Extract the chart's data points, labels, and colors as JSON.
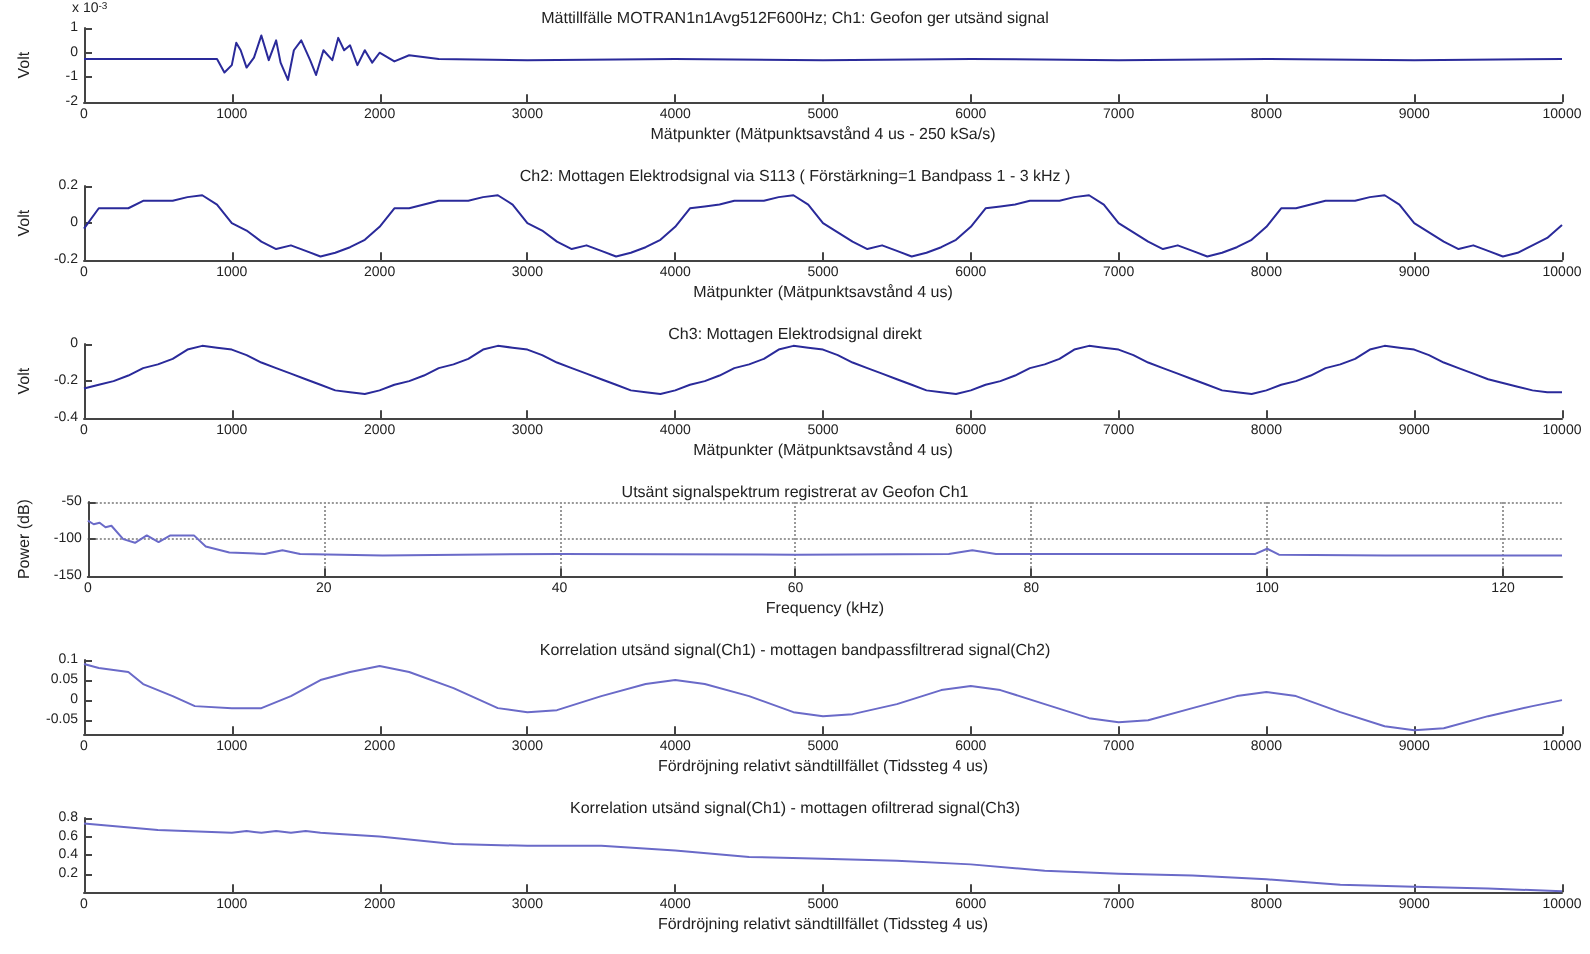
{
  "chart_data": [
    {
      "type": "line",
      "title": "Mättillfälle MOTRAN1n1Avg512F600Hz; Ch1: Geofon ger utsänd signal",
      "xlabel": "Mätpunkter (Mätpunktsavstånd 4 us - 250 kSa/s)",
      "ylabel": "Volt",
      "annotations": [
        "x 10$^{-3}$"
      ],
      "xlim": [
        0,
        10000
      ],
      "xticks": [
        0,
        1000,
        2000,
        3000,
        4000,
        5000,
        6000,
        7000,
        8000,
        9000,
        10000
      ],
      "ylim": [
        -2,
        1
      ],
      "yticks": [
        -2,
        -1,
        0,
        1
      ],
      "grid": false,
      "x": [
        0,
        500,
        900,
        950,
        1000,
        1030,
        1060,
        1100,
        1150,
        1200,
        1250,
        1300,
        1330,
        1380,
        1420,
        1470,
        1530,
        1570,
        1620,
        1680,
        1720,
        1760,
        1800,
        1850,
        1900,
        1950,
        2000,
        2100,
        2200,
        2400,
        3000,
        4000,
        5000,
        6000,
        7000,
        8000,
        9000,
        10000
      ],
      "series": [
        {
          "color": "#2a2a9a",
          "values": [
            -0.25,
            -0.25,
            -0.25,
            -0.8,
            -0.5,
            0.4,
            0.1,
            -0.6,
            -0.2,
            0.7,
            -0.3,
            0.5,
            -0.4,
            -1.1,
            0.1,
            0.5,
            -0.3,
            -0.9,
            0.1,
            -0.3,
            0.6,
            0.1,
            0.3,
            -0.5,
            0.1,
            -0.4,
            0,
            -0.35,
            -0.1,
            -0.25,
            -0.3,
            -0.25,
            -0.3,
            -0.25,
            -0.3,
            -0.25,
            -0.3,
            -0.25
          ]
        }
      ]
    },
    {
      "type": "line",
      "title": "Ch2: Mottagen Elektrodsignal via S113 ( Förstärkning=1 Bandpass 1 - 3 kHz )",
      "xlabel": "Mätpunkter (Mätpunktsavstånd 4 us)",
      "ylabel": "Volt",
      "xlim": [
        0,
        10000
      ],
      "xticks": [
        0,
        1000,
        2000,
        3000,
        4000,
        5000,
        6000,
        7000,
        8000,
        9000,
        10000
      ],
      "ylim": [
        -0.2,
        0.2
      ],
      "yticks": [
        -0.2,
        0,
        0.2
      ],
      "grid": false,
      "x": [
        0,
        100,
        200,
        300,
        400,
        500,
        600,
        700,
        800,
        900,
        1000,
        1100,
        1200,
        1300,
        1400,
        1500,
        1600,
        1700,
        1800,
        1900,
        2000,
        2100,
        2200,
        2300,
        2400,
        2500,
        2600,
        2700,
        2800,
        2900,
        3000,
        3100,
        3200,
        3300,
        3400,
        3500,
        3600,
        3700,
        3800,
        3900,
        4000,
        4100,
        4200,
        4300,
        4400,
        4500,
        4600,
        4700,
        4800,
        4900,
        5000,
        5100,
        5200,
        5300,
        5400,
        5500,
        5600,
        5700,
        5800,
        5900,
        6000,
        6100,
        6200,
        6300,
        6400,
        6500,
        6600,
        6700,
        6800,
        6900,
        7000,
        7100,
        7200,
        7300,
        7400,
        7500,
        7600,
        7700,
        7800,
        7900,
        8000,
        8100,
        8200,
        8300,
        8400,
        8500,
        8600,
        8700,
        8800,
        8900,
        9000,
        9100,
        9200,
        9300,
        9400,
        9500,
        9600,
        9700,
        9800,
        9900,
        10000
      ],
      "series": [
        {
          "color": "#2a2a9a",
          "values": [
            -0.03,
            0.08,
            0.08,
            0.08,
            0.12,
            0.12,
            0.12,
            0.14,
            0.15,
            0.1,
            0.0,
            -0.04,
            -0.1,
            -0.14,
            -0.12,
            -0.15,
            -0.18,
            -0.16,
            -0.13,
            -0.09,
            -0.02,
            0.08,
            0.08,
            0.1,
            0.12,
            0.12,
            0.12,
            0.14,
            0.15,
            0.1,
            0.0,
            -0.04,
            -0.1,
            -0.14,
            -0.12,
            -0.15,
            -0.18,
            -0.16,
            -0.13,
            -0.09,
            -0.02,
            0.08,
            0.09,
            0.1,
            0.12,
            0.12,
            0.12,
            0.14,
            0.15,
            0.1,
            0.0,
            -0.05,
            -0.1,
            -0.14,
            -0.12,
            -0.15,
            -0.18,
            -0.16,
            -0.13,
            -0.09,
            -0.02,
            0.08,
            0.09,
            0.1,
            0.12,
            0.12,
            0.12,
            0.14,
            0.15,
            0.1,
            0.0,
            -0.05,
            -0.1,
            -0.14,
            -0.12,
            -0.15,
            -0.18,
            -0.16,
            -0.13,
            -0.09,
            -0.02,
            0.08,
            0.08,
            0.1,
            0.12,
            0.12,
            0.12,
            0.14,
            0.15,
            0.1,
            0.0,
            -0.05,
            -0.1,
            -0.14,
            -0.12,
            -0.15,
            -0.18,
            -0.16,
            -0.12,
            -0.08,
            -0.01
          ]
        }
      ]
    },
    {
      "type": "line",
      "title": "Ch3: Mottagen Elektrodsignal direkt",
      "xlabel": "Mätpunkter (Mätpunktsavstånd 4 us)",
      "ylabel": "Volt",
      "xlim": [
        0,
        10000
      ],
      "xticks": [
        0,
        1000,
        2000,
        3000,
        4000,
        5000,
        6000,
        7000,
        8000,
        9000,
        10000
      ],
      "ylim": [
        -0.4,
        0
      ],
      "yticks": [
        -0.4,
        -0.2,
        0
      ],
      "grid": false,
      "x": [
        0,
        100,
        200,
        300,
        400,
        500,
        600,
        700,
        800,
        900,
        1000,
        1100,
        1200,
        1300,
        1400,
        1500,
        1600,
        1700,
        1800,
        1900,
        2000,
        2100,
        2200,
        2300,
        2400,
        2500,
        2600,
        2700,
        2800,
        2900,
        3000,
        3100,
        3200,
        3300,
        3400,
        3500,
        3600,
        3700,
        3800,
        3900,
        4000,
        4100,
        4200,
        4300,
        4400,
        4500,
        4600,
        4700,
        4800,
        4900,
        5000,
        5100,
        5200,
        5300,
        5400,
        5500,
        5600,
        5700,
        5800,
        5900,
        6000,
        6100,
        6200,
        6300,
        6400,
        6500,
        6600,
        6700,
        6800,
        6900,
        7000,
        7100,
        7200,
        7300,
        7400,
        7500,
        7600,
        7700,
        7800,
        7900,
        8000,
        8100,
        8200,
        8300,
        8400,
        8500,
        8600,
        8700,
        8800,
        8900,
        9000,
        9100,
        9200,
        9300,
        9400,
        9500,
        9600,
        9700,
        9800,
        9900,
        10000
      ],
      "series": [
        {
          "color": "#2a2a9a",
          "values": [
            -0.24,
            -0.22,
            -0.2,
            -0.17,
            -0.13,
            -0.11,
            -0.08,
            -0.03,
            -0.01,
            -0.02,
            -0.03,
            -0.06,
            -0.1,
            -0.13,
            -0.16,
            -0.19,
            -0.22,
            -0.25,
            -0.26,
            -0.27,
            -0.25,
            -0.22,
            -0.2,
            -0.17,
            -0.13,
            -0.11,
            -0.08,
            -0.03,
            -0.01,
            -0.02,
            -0.03,
            -0.06,
            -0.1,
            -0.13,
            -0.16,
            -0.19,
            -0.22,
            -0.25,
            -0.26,
            -0.27,
            -0.25,
            -0.22,
            -0.2,
            -0.17,
            -0.13,
            -0.11,
            -0.08,
            -0.03,
            -0.01,
            -0.02,
            -0.03,
            -0.06,
            -0.1,
            -0.13,
            -0.16,
            -0.19,
            -0.22,
            -0.25,
            -0.26,
            -0.27,
            -0.25,
            -0.22,
            -0.2,
            -0.17,
            -0.13,
            -0.11,
            -0.08,
            -0.03,
            -0.01,
            -0.02,
            -0.03,
            -0.06,
            -0.1,
            -0.13,
            -0.16,
            -0.19,
            -0.22,
            -0.25,
            -0.26,
            -0.27,
            -0.25,
            -0.22,
            -0.2,
            -0.17,
            -0.13,
            -0.11,
            -0.08,
            -0.03,
            -0.01,
            -0.02,
            -0.03,
            -0.06,
            -0.1,
            -0.13,
            -0.16,
            -0.19,
            -0.21,
            -0.23,
            -0.25,
            -0.26,
            -0.26
          ]
        }
      ]
    },
    {
      "type": "line",
      "title": "Utsänt signalspektrum registrerat av Geofon Ch1",
      "xlabel": "Frequency (kHz)",
      "ylabel": "Power (dB)",
      "xlim": [
        0,
        125
      ],
      "xticks": [
        0,
        20,
        40,
        60,
        80,
        100,
        120
      ],
      "ylim": [
        -150,
        -50
      ],
      "yticks": [
        -150,
        -100,
        -50
      ],
      "grid": true,
      "x": [
        0,
        0.5,
        1,
        1.5,
        2,
        3,
        4,
        5,
        6,
        7,
        9,
        10,
        12,
        15,
        16.5,
        18,
        25,
        40,
        60,
        73,
        75,
        77,
        90,
        99,
        100,
        101,
        110,
        125
      ],
      "series": [
        {
          "color": "#6a6ac8",
          "values": [
            -75,
            -80,
            -78,
            -84,
            -82,
            -100,
            -105,
            -95,
            -104,
            -95,
            -95,
            -110,
            -118,
            -120,
            -115,
            -120,
            -122,
            -120,
            -121,
            -120,
            -115,
            -120,
            -120,
            -120,
            -113,
            -121,
            -122,
            -122
          ]
        }
      ]
    },
    {
      "type": "line",
      "title": "Korrelation utsänd signal(Ch1) - mottagen bandpassfiltrerad signal(Ch2)",
      "xlabel": "Fördröjning relativt sändtillfället (Tidssteg 4 us)",
      "xlim": [
        0,
        10000
      ],
      "xticks": [
        0,
        1000,
        2000,
        3000,
        4000,
        5000,
        6000,
        7000,
        8000,
        9000,
        10000
      ],
      "ylim": [
        -0.085,
        0.1
      ],
      "yticks": [
        -0.05,
        0,
        0.05,
        0.1
      ],
      "grid": false,
      "x": [
        0,
        100,
        300,
        400,
        600,
        750,
        1000,
        1200,
        1400,
        1600,
        1800,
        2000,
        2200,
        2500,
        2800,
        3000,
        3200,
        3500,
        3800,
        4000,
        4200,
        4500,
        4800,
        5000,
        5200,
        5500,
        5800,
        6000,
        6200,
        6500,
        6800,
        7000,
        7200,
        7500,
        7800,
        8000,
        8200,
        8500,
        8800,
        9000,
        9200,
        9500,
        9800,
        10000
      ],
      "series": [
        {
          "color": "#6a6ac8",
          "values": [
            0.09,
            0.08,
            0.07,
            0.04,
            0.01,
            -0.015,
            -0.02,
            -0.02,
            0.01,
            0.05,
            0.07,
            0.085,
            0.07,
            0.03,
            -0.02,
            -0.03,
            -0.025,
            0.01,
            0.04,
            0.05,
            0.04,
            0.01,
            -0.03,
            -0.04,
            -0.035,
            -0.01,
            0.025,
            0.035,
            0.025,
            -0.01,
            -0.045,
            -0.055,
            -0.05,
            -0.02,
            0.01,
            0.02,
            0.01,
            -0.03,
            -0.065,
            -0.075,
            -0.07,
            -0.04,
            -0.015,
            0
          ]
        }
      ]
    },
    {
      "type": "line",
      "title": "Korrelation utsänd signal(Ch1) - mottagen ofiltrerad signal(Ch3)",
      "xlabel": "Fördröjning relativt sändtillfället (Tidssteg 4 us)",
      "xlim": [
        0,
        10000
      ],
      "xticks": [
        0,
        1000,
        2000,
        3000,
        4000,
        5000,
        6000,
        7000,
        8000,
        9000,
        10000
      ],
      "ylim": [
        0,
        0.8
      ],
      "yticks": [
        0.2,
        0.4,
        0.6,
        0.8
      ],
      "grid": false,
      "x": [
        0,
        500,
        1000,
        1100,
        1200,
        1300,
        1400,
        1500,
        1600,
        1700,
        2000,
        2500,
        3000,
        3500,
        4000,
        4500,
        5000,
        5500,
        6000,
        6500,
        7000,
        7500,
        8000,
        8500,
        9000,
        9500,
        10000
      ],
      "series": [
        {
          "color": "#6a6ac8",
          "values": [
            0.74,
            0.67,
            0.64,
            0.66,
            0.64,
            0.66,
            0.64,
            0.66,
            0.64,
            0.63,
            0.6,
            0.52,
            0.5,
            0.5,
            0.45,
            0.38,
            0.36,
            0.34,
            0.3,
            0.23,
            0.2,
            0.18,
            0.14,
            0.08,
            0.06,
            0.04,
            0.01
          ]
        }
      ]
    }
  ]
}
